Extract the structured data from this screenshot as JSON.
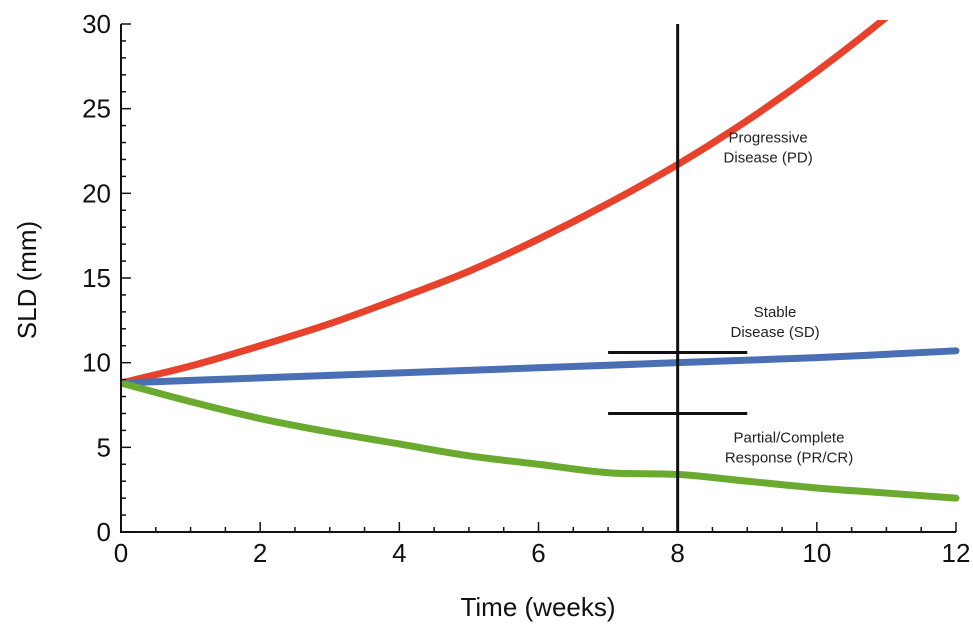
{
  "chart_data": {
    "type": "line",
    "xlabel": "Time (weeks)",
    "ylabel": "SLD (mm)",
    "xlim": [
      0,
      12
    ],
    "ylim": [
      0,
      30
    ],
    "x_ticks": [
      0,
      2,
      4,
      6,
      8,
      10,
      12
    ],
    "y_ticks": [
      0,
      5,
      10,
      15,
      20,
      25,
      30
    ],
    "grid": false,
    "series": [
      {
        "color": "#e8412c",
        "x": [
          0,
          1,
          2,
          3,
          4,
          5,
          6,
          7,
          8,
          9,
          10,
          11,
          11.5
        ],
        "y": [
          8.8,
          9.8,
          11.0,
          12.3,
          13.8,
          15.4,
          17.3,
          19.4,
          21.7,
          24.3,
          27.2,
          30.4,
          32.2
        ]
      },
      {
        "color": "#4a6fb5",
        "x": [
          0,
          2,
          4,
          6,
          8,
          10,
          12
        ],
        "y": [
          8.8,
          9.1,
          9.4,
          9.7,
          10.0,
          10.3,
          10.7
        ]
      },
      {
        "color": "#6aaa2e",
        "x": [
          0,
          1,
          2,
          3,
          4,
          5,
          6,
          7,
          8,
          9,
          10,
          11,
          12
        ],
        "y": [
          8.8,
          7.7,
          6.7,
          5.9,
          5.2,
          4.5,
          4.0,
          3.5,
          3.4,
          3.0,
          2.6,
          2.3,
          2.0
        ]
      }
    ],
    "reference_lines": {
      "vertical_x": 8,
      "horizontal": [
        {
          "y": 10.6,
          "x_from": 7,
          "x_to": 9
        },
        {
          "y": 7.0,
          "x_from": 7,
          "x_to": 9
        }
      ]
    },
    "annotations": [
      {
        "lines": [
          "Progressive",
          "Disease (PD)"
        ],
        "x": 9.3,
        "y": 23.0
      },
      {
        "lines": [
          "Stable",
          "Disease (SD)"
        ],
        "x": 9.4,
        "y": 12.7
      },
      {
        "lines": [
          "Partial/Complete",
          "Response (PR/CR)"
        ],
        "x": 9.6,
        "y": 5.3
      }
    ]
  }
}
